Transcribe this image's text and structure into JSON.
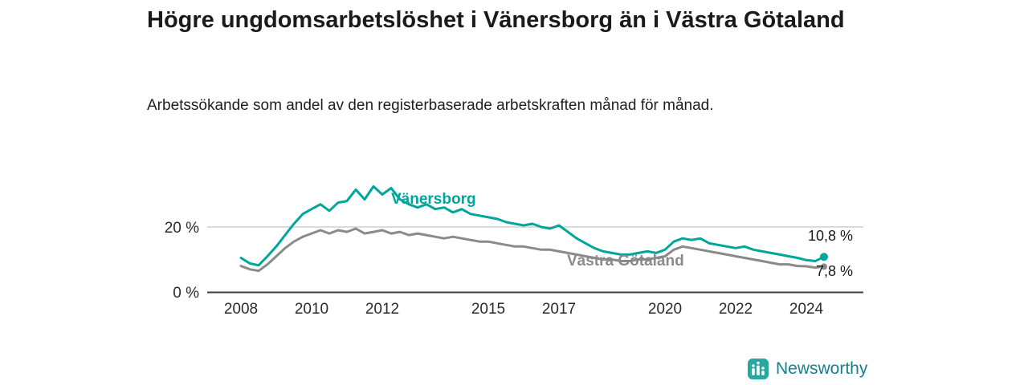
{
  "header": {
    "title": "Högre ungdomsarbetslöshet i Vänersborg än i Västra Götaland",
    "subtitle": "Arbetssökande som andel av den registerbaserade arbetskraften månad för månad."
  },
  "footer": {
    "brand": "Newsworthy",
    "brand_text_color": "#16808d",
    "brand_icon_color": "#2aa6a1"
  },
  "chart_data": {
    "type": "line",
    "title": "Högre ungdomsarbetslöshet i Vänersborg än i Västra Götaland",
    "subtitle": "Arbetssökande som andel av den registerbaserade arbetskraften månad för månad.",
    "ylabel": "",
    "xlabel": "",
    "ylim": [
      0,
      35
    ],
    "xlim": [
      2007,
      2025.6
    ],
    "grid": "single horizontal line at 20 %",
    "legend_position": "inline labels on lines",
    "x_ticks": [
      2008,
      2010,
      2012,
      2015,
      2017,
      2020,
      2022,
      2024
    ],
    "y_ticks": [
      {
        "value": 0,
        "label": "0 %"
      },
      {
        "value": 20,
        "label": "20 %"
      }
    ],
    "series_labels": {
      "vanersborg": "Vänersborg",
      "vastra_gotaland": "Västra Götaland"
    },
    "end_labels": {
      "vanersborg": "10,8 %",
      "vastra_gotaland": "7,8 %"
    },
    "series": [
      {
        "name": "Västra Götaland",
        "color": "#8a8a8a",
        "x_start": 2008.0,
        "x_step": 0.25,
        "dot_r": 4,
        "values": [
          8.0,
          7.0,
          6.5,
          8.5,
          11.0,
          13.5,
          15.5,
          17.0,
          18.0,
          19.0,
          18.0,
          19.0,
          18.5,
          19.5,
          18.0,
          18.5,
          19.0,
          18.0,
          18.5,
          17.5,
          18.0,
          17.5,
          17.0,
          16.5,
          17.0,
          16.5,
          16.0,
          15.5,
          15.5,
          15.0,
          14.5,
          14.0,
          14.0,
          13.5,
          13.0,
          13.0,
          12.5,
          12.0,
          11.5,
          11.0,
          10.5,
          10.0,
          10.0,
          9.5,
          9.5,
          10.0,
          10.0,
          10.5,
          11.0,
          13.0,
          14.0,
          13.5,
          13.0,
          12.5,
          12.0,
          11.5,
          11.0,
          10.5,
          10.0,
          9.5,
          9.0,
          8.5,
          8.5,
          8.0,
          7.9,
          7.5,
          7.8
        ]
      },
      {
        "name": "Vänersborg",
        "color": "#00A59B",
        "x_start": 2008.0,
        "x_step": 0.25,
        "dot_r": 5,
        "values": [
          10.5,
          8.8,
          8.2,
          11.0,
          14.0,
          17.5,
          21.0,
          24.0,
          25.5,
          27.0,
          25.0,
          27.5,
          28.0,
          31.5,
          28.5,
          32.5,
          30.0,
          32.0,
          28.5,
          27.0,
          26.0,
          27.0,
          25.5,
          26.0,
          24.5,
          25.5,
          24.0,
          23.5,
          23.0,
          22.5,
          21.5,
          21.0,
          20.5,
          21.0,
          20.0,
          19.5,
          20.5,
          18.5,
          16.5,
          15.0,
          13.5,
          12.5,
          12.0,
          11.5,
          11.5,
          12.0,
          12.5,
          12.0,
          13.0,
          15.5,
          16.5,
          16.0,
          16.5,
          15.0,
          14.5,
          14.0,
          13.5,
          14.0,
          13.0,
          12.5,
          12.0,
          11.5,
          11.0,
          10.5,
          9.8,
          9.5,
          10.8
        ]
      }
    ]
  }
}
